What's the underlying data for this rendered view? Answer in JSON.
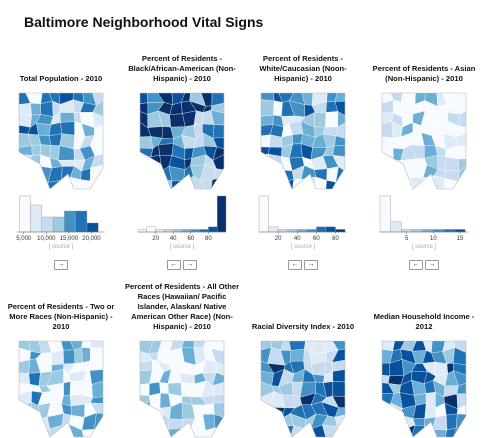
{
  "header": {
    "title": "Baltimore Neighborhood Vital Signs"
  },
  "panels": [
    {
      "title": "Total Population - 2010",
      "histogram": {
        "bins": [
          4000,
          6500,
          9000,
          11500,
          14000,
          16500,
          19000,
          21500
        ],
        "counts": [
          12,
          9,
          5,
          5,
          7,
          7,
          3
        ],
        "xlim": [
          3500,
          23000
        ],
        "xticks": [
          {
            "value": 5000,
            "label": "5,000"
          },
          {
            "value": 10000,
            "label": "10,000"
          },
          {
            "value": 15000,
            "label": "15,000"
          },
          {
            "value": 20000,
            "label": "20,000"
          }
        ]
      },
      "source": "[ source ]",
      "buttons": [
        "→"
      ]
    },
    {
      "title": "Percent of Residents - Black/African-American (Non-Hispanic) - 2010",
      "histogram": {
        "bins": [
          0,
          10,
          20,
          30,
          40,
          50,
          60,
          70,
          80,
          90,
          100
        ],
        "counts": [
          1,
          2,
          1,
          1,
          1,
          1,
          1,
          1,
          2,
          14
        ],
        "xlim": [
          0,
          100
        ],
        "xticks": [
          20,
          40,
          60,
          80
        ]
      },
      "source": "[ source ]",
      "buttons": [
        "←",
        "→"
      ]
    },
    {
      "title": "Percent of Residents - White/Caucasian (Noon-Hispanic) - 2010",
      "histogram": {
        "bins": [
          0,
          10,
          20,
          30,
          40,
          50,
          60,
          70,
          80,
          90
        ],
        "counts": [
          14,
          2,
          1,
          1,
          1,
          1,
          2,
          2,
          1
        ],
        "xlim": [
          0,
          92
        ],
        "xticks": [
          20,
          40,
          60,
          80
        ]
      },
      "source": "[ source ]",
      "buttons": [
        "←",
        "→"
      ]
    },
    {
      "title": "Percent of Residents - Asian (Non-Hispanic) - 2010",
      "histogram": {
        "bins": [
          0,
          2,
          4,
          6,
          8,
          10,
          12,
          14,
          16
        ],
        "counts": [
          14,
          4,
          1,
          1,
          1,
          1,
          1,
          1
        ],
        "xlim": [
          0,
          16.5
        ],
        "xticks": [
          5,
          10,
          15
        ]
      },
      "source": "[ source ]",
      "buttons": [
        "←",
        "→"
      ]
    },
    {
      "title": "Percent of Residents - Two or More Races (Non-Hispanic) - 2010"
    },
    {
      "title": "Percent of Residents - All Other Races (Hawaiian/ Pacific Islander, Alaskan/ Native American Other Race) (Non-Hispanic) - 2010"
    },
    {
      "title": "Racial Diversity Index - 2010"
    },
    {
      "title": "Median Household Income - 2012"
    }
  ]
}
